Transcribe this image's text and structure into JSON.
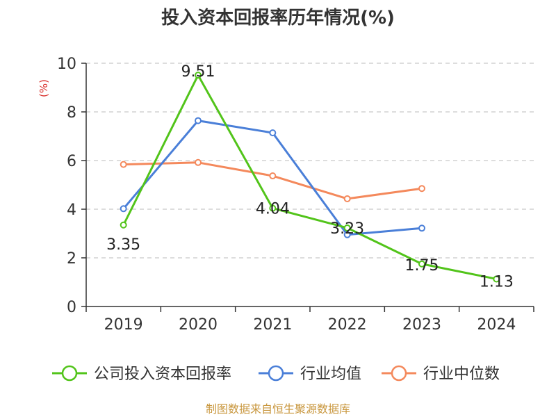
{
  "chart_data": {
    "type": "line",
    "title": "投入资本回报率历年情况(%)",
    "ylabel": "(%)",
    "categories": [
      "2019",
      "2020",
      "2021",
      "2022",
      "2023",
      "2024"
    ],
    "ylim": [
      0,
      10
    ],
    "yticks": [
      "0",
      "2",
      "4",
      "6",
      "8",
      "10"
    ],
    "grid": true,
    "legend_position": "bottom",
    "series": [
      {
        "name": "公司投入资本回报率",
        "color": "#52c41a",
        "values": [
          3.35,
          9.51,
          4.04,
          3.23,
          1.75,
          1.13
        ],
        "labels": [
          "3.35",
          "9.51",
          "4.04",
          "3.23",
          "1.75",
          "1.13"
        ]
      },
      {
        "name": "行业均值",
        "color": "#4a7fd8",
        "values": [
          4.02,
          7.64,
          7.14,
          2.95,
          3.22,
          null
        ]
      },
      {
        "name": "行业中位数",
        "color": "#f4895c",
        "values": [
          5.84,
          5.92,
          5.37,
          4.43,
          4.85,
          null
        ]
      }
    ]
  },
  "footer": {
    "source": "制图数据来自恒生聚源数据库",
    "source_color": "#c8963c"
  },
  "colors": {
    "axis": "#333333",
    "grid": "#bbbbbb",
    "unit": "#d9302c"
  }
}
